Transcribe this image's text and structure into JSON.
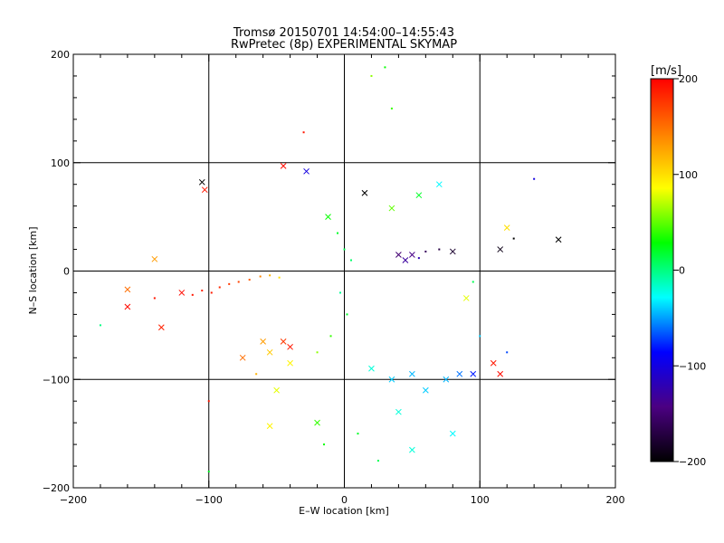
{
  "chart_data": {
    "type": "scatter",
    "title": "Tromsø 20150701 14:54:00–14:55:43",
    "subtitle": "RwPretec (8p) EXPERIMENTAL SKYMAP",
    "xlabel": "E–W location [km]",
    "ylabel": "N–S location [km]",
    "xlim": [
      -200,
      200
    ],
    "ylim": [
      -200,
      200
    ],
    "x_ticks": [
      -200,
      -100,
      0,
      100,
      200
    ],
    "y_ticks": [
      -200,
      -100,
      0,
      100,
      200
    ],
    "x_tick_labels": [
      "−200",
      "−100",
      "0",
      "100",
      "200"
    ],
    "y_tick_labels": [
      "−200",
      "−100",
      "0",
      "100",
      "200"
    ],
    "grid_lines": [
      -100,
      0,
      100
    ],
    "grid": true,
    "colorbar": {
      "label": "[m/s]",
      "range": [
        -200,
        200
      ],
      "ticks": [
        200,
        100,
        0,
        -100,
        -200
      ],
      "tick_labels": [
        "200",
        "100",
        "0",
        "−100",
        "−200"
      ],
      "colormap": [
        "#000000",
        "#4b0082",
        "#0000ff",
        "#00ffff",
        "#00ff00",
        "#ffff00",
        "#ff7f00",
        "#ff0000"
      ]
    },
    "series": [
      {
        "markers": "dots and crosses",
        "points": [
          {
            "x": -120,
            "y": -20,
            "v": 195,
            "m": "x"
          },
          {
            "x": -112,
            "y": -22,
            "v": 190,
            "m": "."
          },
          {
            "x": -105,
            "y": -18,
            "v": 185,
            "m": "."
          },
          {
            "x": -98,
            "y": -20,
            "v": 188,
            "m": "."
          },
          {
            "x": -92,
            "y": -15,
            "v": 182,
            "m": "."
          },
          {
            "x": -85,
            "y": -12,
            "v": 175,
            "m": "."
          },
          {
            "x": -78,
            "y": -10,
            "v": 170,
            "m": "."
          },
          {
            "x": -70,
            "y": -8,
            "v": 160,
            "m": "."
          },
          {
            "x": -62,
            "y": -5,
            "v": 140,
            "m": "."
          },
          {
            "x": -55,
            "y": -4,
            "v": 120,
            "m": "."
          },
          {
            "x": -48,
            "y": -6,
            "v": 100,
            "m": "."
          },
          {
            "x": -140,
            "y": -25,
            "v": 190,
            "m": "."
          },
          {
            "x": -160,
            "y": -33,
            "v": 195,
            "m": "x"
          },
          {
            "x": -160,
            "y": -17,
            "v": 150,
            "m": "x"
          },
          {
            "x": -135,
            "y": -52,
            "v": 185,
            "m": "x"
          },
          {
            "x": -140,
            "y": 11,
            "v": 130,
            "m": "x"
          },
          {
            "x": -103,
            "y": 75,
            "v": 190,
            "m": "x"
          },
          {
            "x": -105,
            "y": 82,
            "v": -200,
            "m": "x"
          },
          {
            "x": -45,
            "y": 97,
            "v": 195,
            "m": "x"
          },
          {
            "x": -30,
            "y": 128,
            "v": 190,
            "m": "."
          },
          {
            "x": -28,
            "y": 92,
            "v": -100,
            "m": "x"
          },
          {
            "x": -12,
            "y": 50,
            "v": 30,
            "m": "x"
          },
          {
            "x": -5,
            "y": 35,
            "v": 20,
            "m": "."
          },
          {
            "x": 0,
            "y": 20,
            "v": 10,
            "m": "."
          },
          {
            "x": 5,
            "y": 10,
            "v": 5,
            "m": "."
          },
          {
            "x": -3,
            "y": -20,
            "v": -5,
            "m": "."
          },
          {
            "x": 2,
            "y": -40,
            "v": 20,
            "m": "."
          },
          {
            "x": -10,
            "y": -60,
            "v": 40,
            "m": "."
          },
          {
            "x": -20,
            "y": -75,
            "v": 60,
            "m": "."
          },
          {
            "x": -40,
            "y": -85,
            "v": 90,
            "m": "x"
          },
          {
            "x": -55,
            "y": -75,
            "v": 110,
            "m": "x"
          },
          {
            "x": -75,
            "y": -80,
            "v": 150,
            "m": "x"
          },
          {
            "x": -65,
            "y": -95,
            "v": 120,
            "m": "."
          },
          {
            "x": -60,
            "y": -65,
            "v": 130,
            "m": "x"
          },
          {
            "x": -45,
            "y": -65,
            "v": 175,
            "m": "x"
          },
          {
            "x": -40,
            "y": -70,
            "v": 190,
            "m": "x"
          },
          {
            "x": -50,
            "y": -110,
            "v": 80,
            "m": "x"
          },
          {
            "x": -55,
            "y": -143,
            "v": 90,
            "m": "x"
          },
          {
            "x": -20,
            "y": -140,
            "v": 40,
            "m": "x"
          },
          {
            "x": -15,
            "y": -160,
            "v": 30,
            "m": "."
          },
          {
            "x": 10,
            "y": -150,
            "v": 20,
            "m": "."
          },
          {
            "x": 20,
            "y": -90,
            "v": -20,
            "m": "x"
          },
          {
            "x": 35,
            "y": -100,
            "v": -40,
            "m": "x"
          },
          {
            "x": 50,
            "y": -95,
            "v": -45,
            "m": "x"
          },
          {
            "x": 60,
            "y": -110,
            "v": -40,
            "m": "x"
          },
          {
            "x": 75,
            "y": -100,
            "v": -45,
            "m": "x"
          },
          {
            "x": 85,
            "y": -95,
            "v": -60,
            "m": "x"
          },
          {
            "x": 95,
            "y": -95,
            "v": -80,
            "m": "x"
          },
          {
            "x": 80,
            "y": -150,
            "v": -30,
            "m": "x"
          },
          {
            "x": 50,
            "y": -165,
            "v": -20,
            "m": "x"
          },
          {
            "x": 110,
            "y": -85,
            "v": 190,
            "m": "x"
          },
          {
            "x": 115,
            "y": -95,
            "v": 195,
            "m": "x"
          },
          {
            "x": 120,
            "y": -75,
            "v": -70,
            "m": "."
          },
          {
            "x": 100,
            "y": -60,
            "v": -40,
            "m": "."
          },
          {
            "x": 90,
            "y": -25,
            "v": 80,
            "m": "x"
          },
          {
            "x": 95,
            "y": -10,
            "v": 10,
            "m": "."
          },
          {
            "x": 40,
            "y": 15,
            "v": -150,
            "m": "x"
          },
          {
            "x": 45,
            "y": 10,
            "v": -130,
            "m": "x"
          },
          {
            "x": 50,
            "y": 15,
            "v": -140,
            "m": "x"
          },
          {
            "x": 55,
            "y": 12,
            "v": -120,
            "m": "."
          },
          {
            "x": 60,
            "y": 18,
            "v": -160,
            "m": "."
          },
          {
            "x": 70,
            "y": 20,
            "v": -170,
            "m": "."
          },
          {
            "x": 80,
            "y": 18,
            "v": -180,
            "m": "x"
          },
          {
            "x": 115,
            "y": 20,
            "v": -190,
            "m": "x"
          },
          {
            "x": 120,
            "y": 40,
            "v": 100,
            "m": "x"
          },
          {
            "x": 125,
            "y": 30,
            "v": -200,
            "m": "."
          },
          {
            "x": 158,
            "y": 29,
            "v": -200,
            "m": "x"
          },
          {
            "x": 140,
            "y": 85,
            "v": -100,
            "m": "."
          },
          {
            "x": 30,
            "y": 188,
            "v": 30,
            "m": "."
          },
          {
            "x": 35,
            "y": 150,
            "v": 40,
            "m": "."
          },
          {
            "x": 20,
            "y": 180,
            "v": 60,
            "m": "."
          },
          {
            "x": 15,
            "y": 72,
            "v": -200,
            "m": "x"
          },
          {
            "x": 55,
            "y": 70,
            "v": 20,
            "m": "x"
          },
          {
            "x": 70,
            "y": 80,
            "v": -30,
            "m": "x"
          },
          {
            "x": 35,
            "y": 58,
            "v": 50,
            "m": "x"
          },
          {
            "x": -180,
            "y": -50,
            "v": 0,
            "m": "."
          },
          {
            "x": -100,
            "y": -120,
            "v": 190,
            "m": "."
          },
          {
            "x": -100,
            "y": -185,
            "v": 20,
            "m": "."
          },
          {
            "x": 40,
            "y": -130,
            "v": -20,
            "m": "x"
          },
          {
            "x": 25,
            "y": -175,
            "v": 10,
            "m": "."
          }
        ]
      }
    ]
  }
}
